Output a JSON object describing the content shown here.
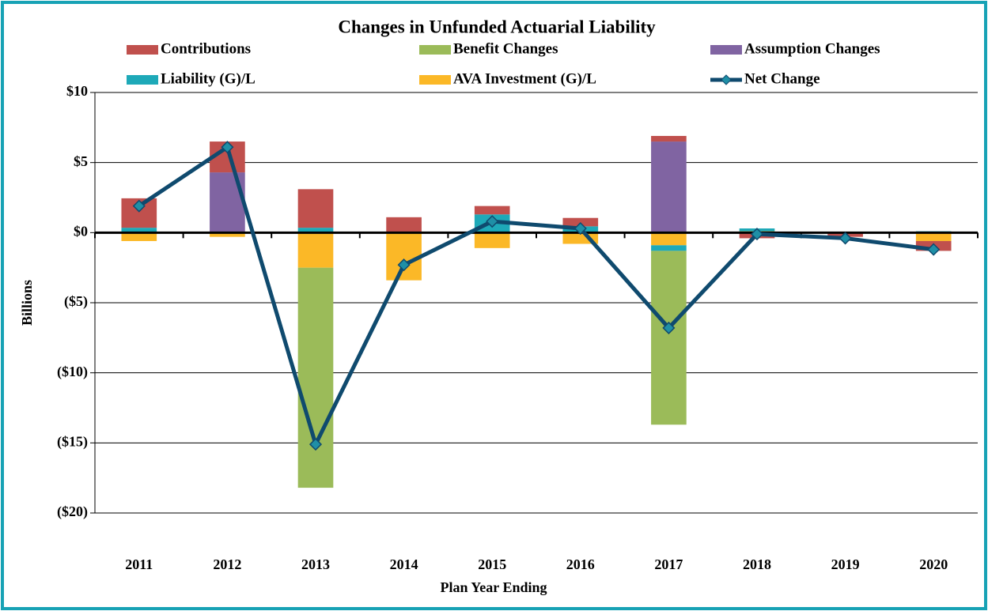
{
  "chart_data": {
    "type": "stacked-bar-line",
    "title": "Changes in Unfunded Actuarial Liability",
    "x_label": "Plan Year Ending",
    "y_label": "Billions",
    "categories": [
      "2011",
      "2012",
      "2013",
      "2014",
      "2015",
      "2016",
      "2017",
      "2018",
      "2019",
      "2020"
    ],
    "series": [
      {
        "name": "Contributions",
        "color": "#c0504d",
        "values": [
          2.1,
          2.2,
          2.75,
          1.1,
          0.6,
          0.6,
          0.4,
          -0.4,
          -0.3,
          -0.7
        ]
      },
      {
        "name": "Benefit Changes",
        "color": "#9bbb59",
        "values": [
          0,
          0,
          -15.7,
          0,
          0,
          0,
          -12.4,
          0,
          0,
          0
        ]
      },
      {
        "name": "Assumption Changes",
        "color": "#8064a2",
        "values": [
          0,
          4.3,
          0,
          0,
          0,
          0,
          6.5,
          0,
          0,
          0
        ]
      },
      {
        "name": "Liability (G)/L",
        "color": "#1ea9b8",
        "values": [
          0.35,
          0,
          0.35,
          0,
          1.3,
          0.45,
          -0.4,
          0.2,
          0,
          0.1
        ]
      },
      {
        "name": "AVA Investment (G)/L",
        "color": "#fbb827",
        "values": [
          -0.6,
          -0.3,
          -2.5,
          -3.4,
          -1.1,
          -0.8,
          -0.9,
          0.1,
          0,
          -0.6
        ]
      },
      {
        "name": "Net Change",
        "type": "line",
        "color": "#0f4a6e",
        "marker_color": "#1f8fa6",
        "values": [
          1.9,
          6.1,
          -15.1,
          -2.3,
          0.8,
          0.3,
          -6.8,
          -0.1,
          -0.4,
          -1.2
        ]
      }
    ],
    "ylim": [
      -20,
      10
    ],
    "yticks": [
      {
        "value": 10,
        "label": "$10"
      },
      {
        "value": 5,
        "label": "$5"
      },
      {
        "value": 0,
        "label": "$0"
      },
      {
        "value": -5,
        "label": "($5)"
      },
      {
        "value": -10,
        "label": "($10)"
      },
      {
        "value": -15,
        "label": "($15)"
      },
      {
        "value": -20,
        "label": "($20)"
      }
    ],
    "grid": true
  }
}
